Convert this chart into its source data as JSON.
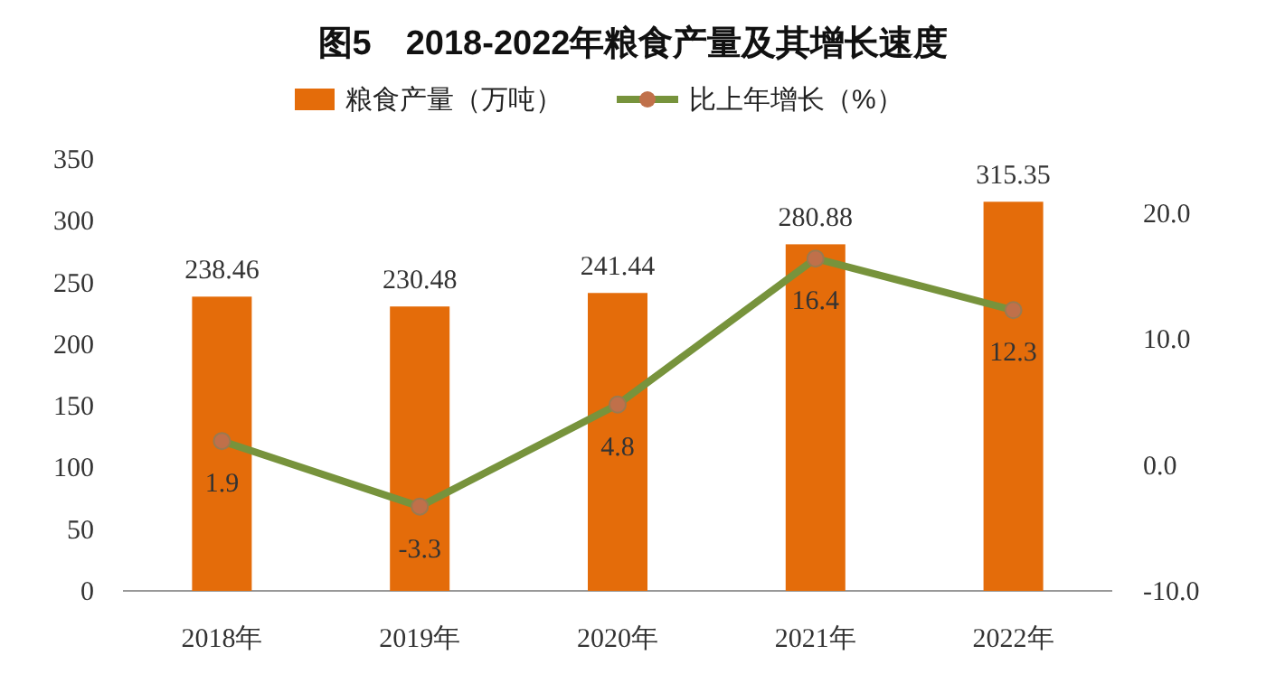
{
  "chart_data": {
    "type": "bar",
    "title": "图5　2018-2022年粮食产量及其增长速度",
    "categories": [
      "2018年",
      "2019年",
      "2020年",
      "2021年",
      "2022年"
    ],
    "series": [
      {
        "name": "粮食产量（万吨）",
        "color": "#e46c0a",
        "values": [
          238.46,
          230.48,
          241.44,
          280.88,
          315.35
        ]
      },
      {
        "name": "比上年增长（%）",
        "type": "line",
        "axis": "y2",
        "color": "#77933c",
        "marker": "circle",
        "values": [
          1.9,
          -3.3,
          4.8,
          16.4,
          12.3
        ]
      }
    ],
    "ylim": [
      0,
      350
    ],
    "yticks": [
      0,
      50,
      100,
      150,
      200,
      250,
      300,
      350
    ],
    "y2lim": [
      -10,
      20
    ],
    "y2ticks": [
      {
        "value": -10,
        "label": "-10.0"
      },
      {
        "value": 0,
        "label": "0.0"
      },
      {
        "value": 10,
        "label": "10.0"
      },
      {
        "value": 20,
        "label": "20.0"
      }
    ],
    "data_labels": true,
    "legend": "top",
    "grid": false
  }
}
